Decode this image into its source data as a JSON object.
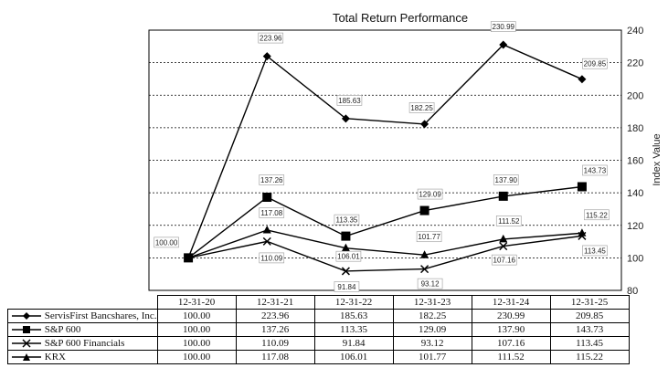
{
  "chart_data": {
    "type": "line",
    "title": "Total Return Performance",
    "xlabel": "",
    "ylabel": "Index Value",
    "categories": [
      "12-31-20",
      "12-31-21",
      "12-31-22",
      "12-31-23",
      "12-31-24",
      "12-31-25"
    ],
    "ylim": [
      80,
      240
    ],
    "yticks": [
      "80",
      "100",
      "120",
      "140",
      "160",
      "180",
      "200",
      "220",
      "240"
    ],
    "grid": "horizontal-dashed",
    "series": [
      {
        "name": "ServisFirst Bancshares, Inc.",
        "marker": "diamond",
        "values": [
          100.0,
          223.96,
          185.63,
          182.25,
          230.99,
          209.85
        ],
        "labels": [
          "100.00",
          "223.96",
          "185.63",
          "182.25",
          "230.99",
          "209.85"
        ]
      },
      {
        "name": "S&P 600",
        "marker": "square",
        "values": [
          100.0,
          137.26,
          113.35,
          129.09,
          137.9,
          143.73
        ],
        "labels": [
          "100.00",
          "137.26",
          "113.35",
          "129.09",
          "137.90",
          "143.73"
        ]
      },
      {
        "name": "S&P 600 Financials",
        "marker": "x",
        "values": [
          100.0,
          110.09,
          91.84,
          93.12,
          107.16,
          113.45
        ],
        "labels": [
          "100.00",
          "110.09",
          "91.84",
          "93.12",
          "107.16",
          "113.45"
        ]
      },
      {
        "name": "KRX",
        "marker": "triangle",
        "values": [
          100.0,
          117.08,
          106.01,
          101.77,
          111.52,
          115.22
        ],
        "labels": [
          "100.00",
          "117.08",
          "106.01",
          "101.77",
          "111.52",
          "115.22"
        ]
      }
    ]
  }
}
